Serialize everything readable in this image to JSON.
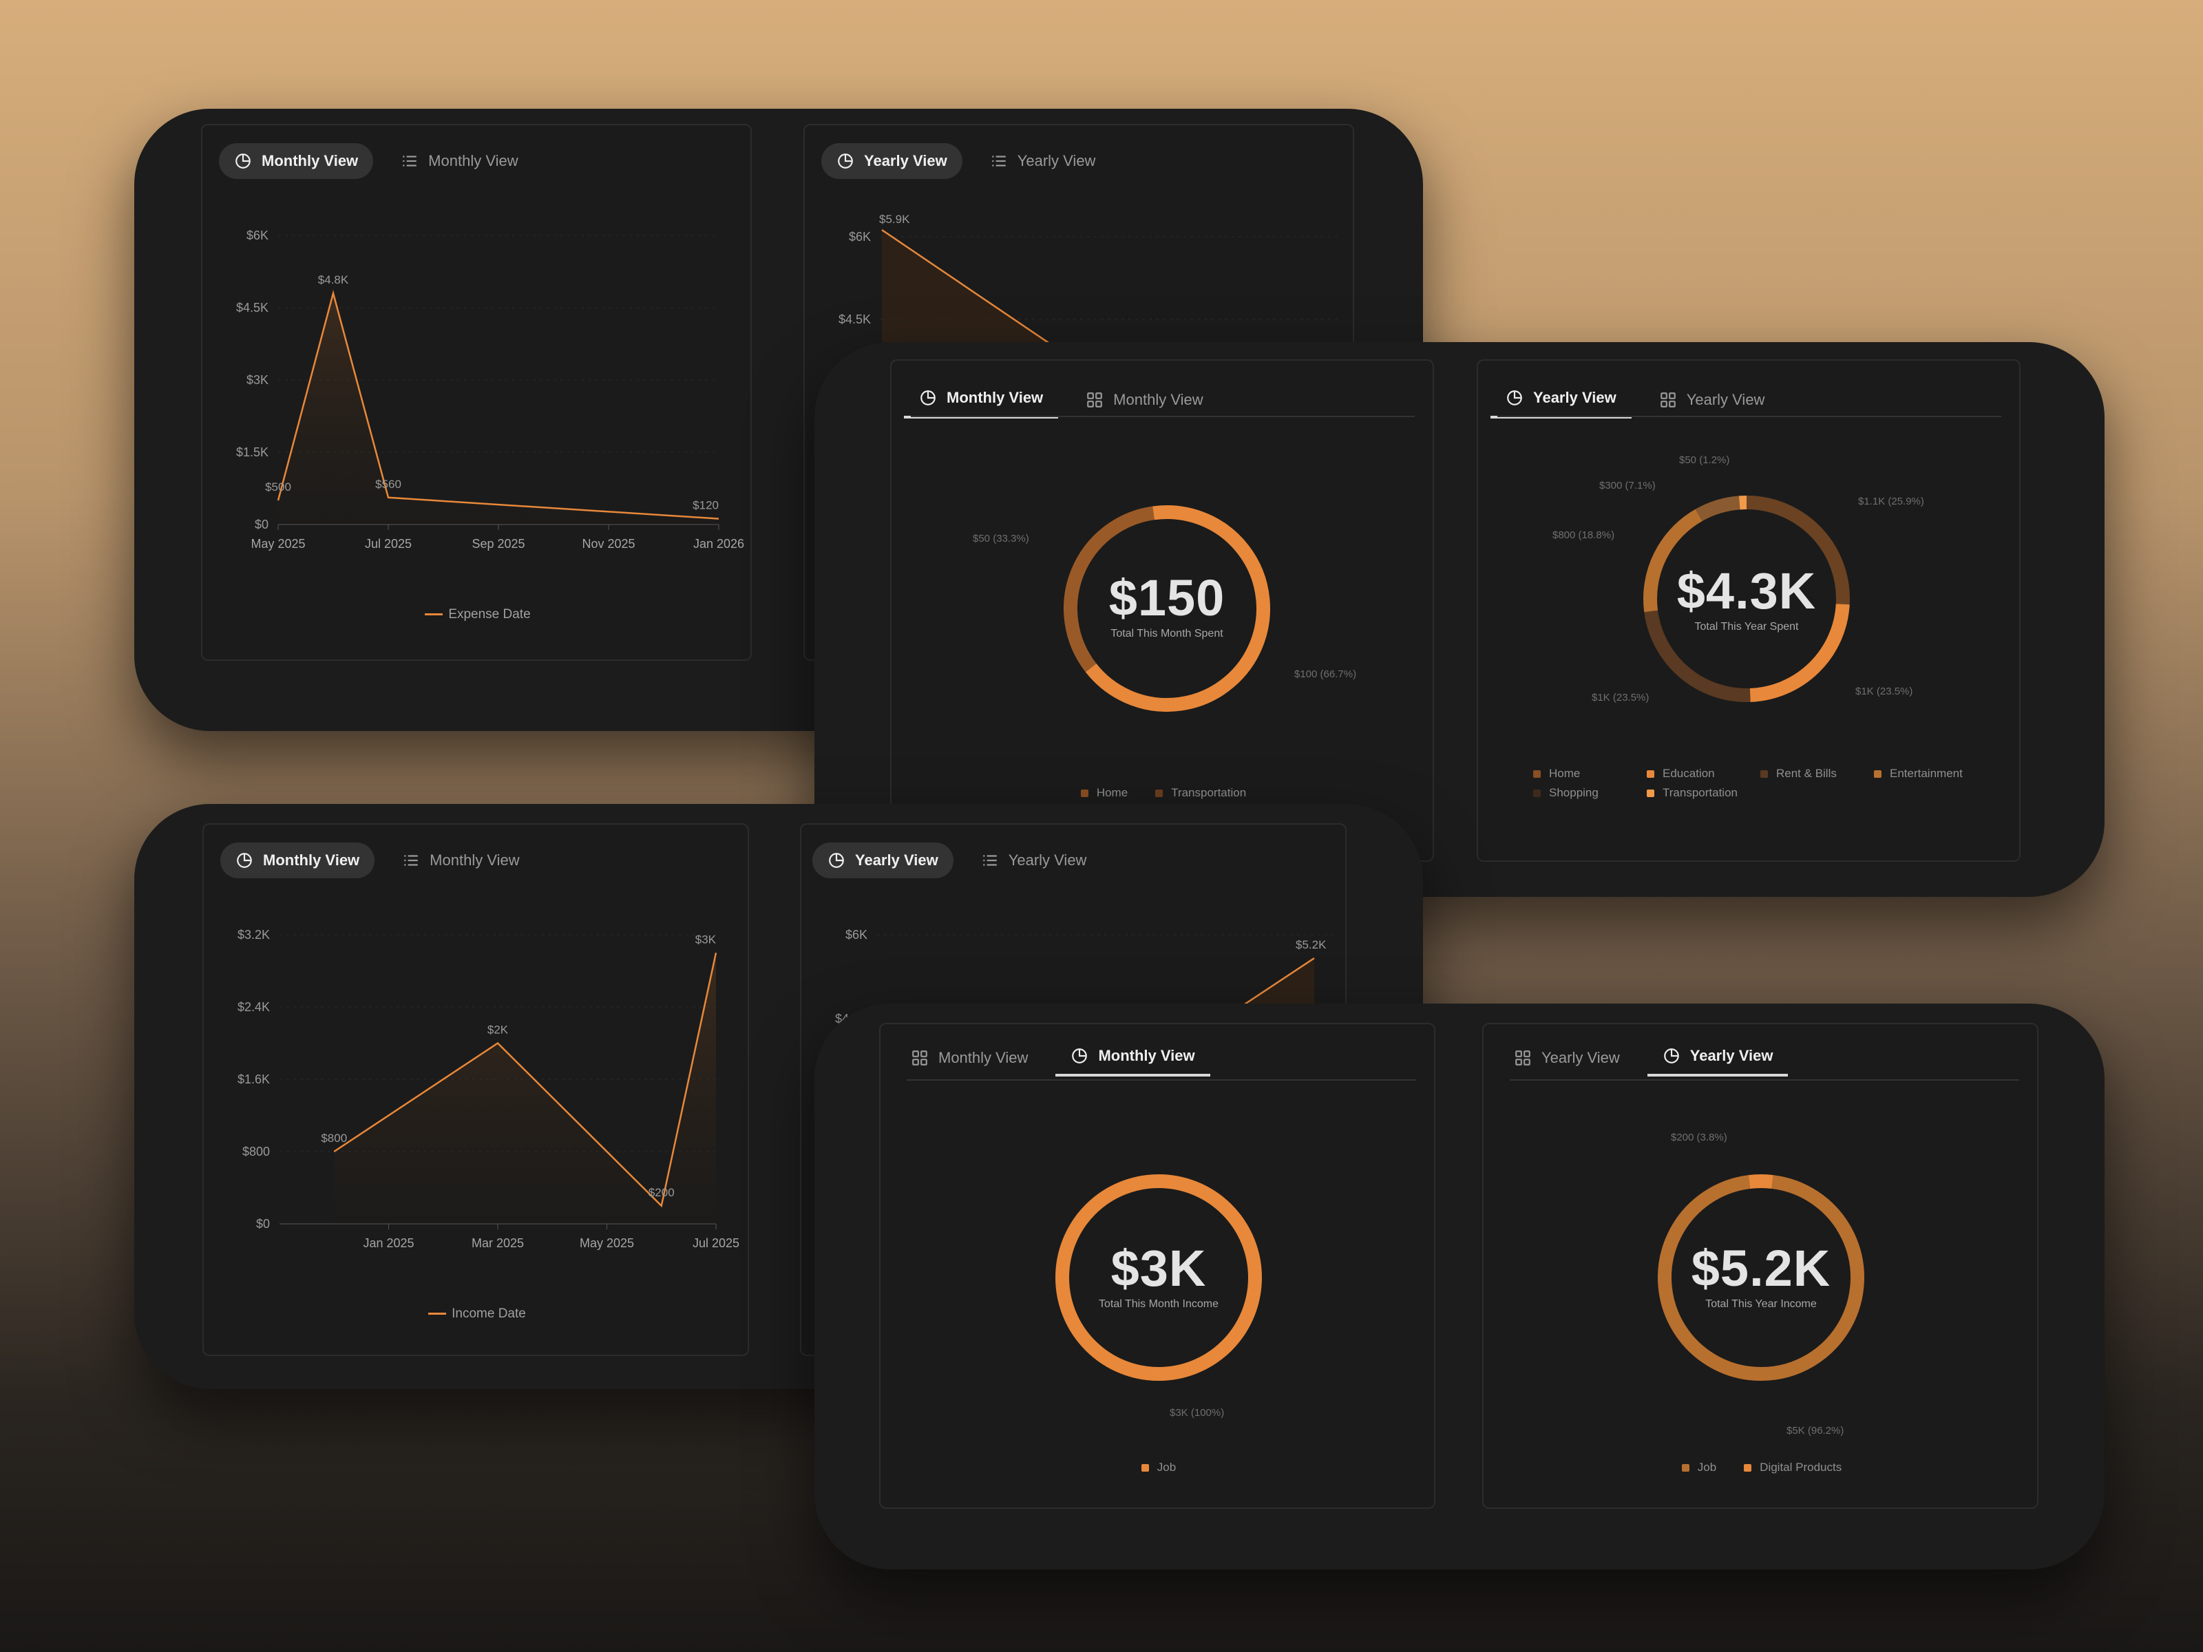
{
  "colors": {
    "accent": "#e8883a",
    "accent_dark": "#b8702f",
    "brown": "#6b4323",
    "muted_brown": "#3e2a1c"
  },
  "expense_panel": {
    "monthly": {
      "tabs": [
        "Monthly View",
        "Monthly View"
      ],
      "yticks": [
        "$6K",
        "$4.5K",
        "$3K",
        "$1.5K",
        "$0"
      ],
      "xticks": [
        "May 2025",
        "Jul 2025",
        "Sep 2025",
        "Nov 2025",
        "Jan 2026"
      ],
      "legend": "Expense Date"
    },
    "yearly": {
      "tabs": [
        "Yearly View",
        "Yearly View"
      ],
      "yticks": [
        "$6K",
        "$4.5K"
      ],
      "peak_label": "$5.9K"
    }
  },
  "expense_donuts": {
    "monthly": {
      "tabs": [
        "Monthly View",
        "Monthly View"
      ],
      "value": "$150",
      "caption": "Total This Month Spent",
      "labels": [
        "$50 (33.3%)",
        "$100 (66.7%)"
      ],
      "legend": [
        "Home",
        "Transportation"
      ]
    },
    "yearly": {
      "tabs": [
        "Yearly View",
        "Yearly View"
      ],
      "value": "$4.3K",
      "caption": "Total This Year Spent",
      "labels": [
        "$50 (1.2%)",
        "$300 (7.1%)",
        "$800 (18.8%)",
        "$1.1K (25.9%)",
        "$1K (23.5%)",
        "$1K (23.5%)"
      ],
      "legend": [
        "Home",
        "Education",
        "Rent & Bills",
        "Entertainment",
        "Shopping",
        "Transportation"
      ]
    }
  },
  "income_panel": {
    "monthly": {
      "tabs": [
        "Monthly View",
        "Monthly View"
      ],
      "yticks": [
        "$3.2K",
        "$2.4K",
        "$1.6K",
        "$800",
        "$0"
      ],
      "xticks": [
        "Jan 2025",
        "Mar 2025",
        "May 2025",
        "Jul 2025"
      ],
      "legend": "Income Date"
    },
    "yearly": {
      "tabs": [
        "Yearly View",
        "Yearly View"
      ],
      "yticks": [
        "$6K",
        "$4.5K"
      ],
      "peak_label": "$5.2K"
    }
  },
  "income_donuts": {
    "monthly": {
      "tabs": [
        "Monthly View",
        "Monthly View"
      ],
      "value": "$3K",
      "caption": "Total This Month Income",
      "labels": [
        "$3K (100%)"
      ],
      "legend": [
        "Job"
      ]
    },
    "yearly": {
      "tabs": [
        "Yearly View",
        "Yearly View"
      ],
      "value": "$5.2K",
      "caption": "Total This Year Income",
      "labels": [
        "$200 (3.8%)",
        "$5K (96.2%)"
      ],
      "legend": [
        "Job",
        "Digital Products"
      ]
    }
  },
  "chart_data": [
    {
      "type": "area",
      "legend": "Expense Date",
      "x": [
        "May 2025",
        "Jun 2025",
        "Jul 2025",
        "Jan 2026"
      ],
      "values": [
        500,
        4800,
        560,
        120
      ],
      "data_labels": [
        "$500",
        "$4.8K",
        "$560",
        "$120"
      ],
      "ylim": [
        0,
        6000
      ],
      "yticks": [
        0,
        1500,
        3000,
        4500,
        6000
      ],
      "xticks": [
        "May 2025",
        "Jul 2025",
        "Sep 2025",
        "Nov 2025",
        "Jan 2026"
      ],
      "grid": true
    },
    {
      "type": "area",
      "legend": "Income Date",
      "x": [
        "Dec 2024",
        "Mar 2025",
        "Jun 2025",
        "Jul 2025"
      ],
      "values": [
        800,
        2000,
        200,
        3000
      ],
      "data_labels": [
        "$800",
        "$2K",
        "$200",
        "$3K"
      ],
      "ylim": [
        0,
        3200
      ],
      "yticks": [
        0,
        800,
        1600,
        2400,
        3200
      ],
      "xticks": [
        "Jan 2025",
        "Mar 2025",
        "May 2025",
        "Jul 2025"
      ],
      "grid": true
    },
    {
      "type": "pie",
      "caption": "Total This Month Spent",
      "categories": [
        "Home",
        "Transportation"
      ],
      "values": [
        50,
        100
      ]
    },
    {
      "type": "pie",
      "caption": "Total This Year Spent",
      "slices": [
        {
          "label": "$1.1K (25.9%)",
          "value": 1100
        },
        {
          "label": "$1K (23.5%)",
          "value": 1000
        },
        {
          "label": "$1K (23.5%)",
          "value": 1000
        },
        {
          "label": "$800 (18.8%)",
          "value": 800
        },
        {
          "label": "$300 (7.1%)",
          "value": 300
        },
        {
          "label": "$50 (1.2%)",
          "value": 50
        }
      ]
    },
    {
      "type": "pie",
      "caption": "Total This Month Income",
      "categories": [
        "Job"
      ],
      "values": [
        3000
      ]
    },
    {
      "type": "pie",
      "caption": "Total This Year Income",
      "categories": [
        "Job",
        "Digital Products"
      ],
      "values": [
        5000,
        200
      ]
    }
  ]
}
